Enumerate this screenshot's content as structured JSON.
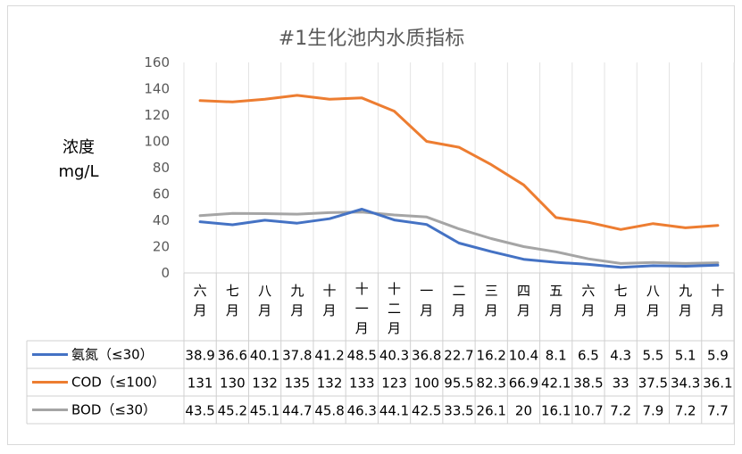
{
  "chart_data": {
    "type": "line",
    "title": "#1生化池内水质指标",
    "ylabel_line1": "浓度",
    "ylabel_line2": "mg/L",
    "ylim": [
      0,
      160
    ],
    "yticks": [
      0,
      20,
      40,
      60,
      80,
      100,
      120,
      140,
      160
    ],
    "categories": [
      "六月",
      "七月",
      "八月",
      "九月",
      "十月",
      "十一月",
      "十二月",
      "一月",
      "二月",
      "三月",
      "四月",
      "五月",
      "六月",
      "七月",
      "八月",
      "九月",
      "十月"
    ],
    "series": [
      {
        "name": "氨氮（≤30）",
        "color": "#4472c4",
        "values": [
          38.9,
          36.6,
          40.1,
          37.8,
          41.2,
          48.5,
          40.3,
          36.8,
          22.7,
          16.2,
          10.4,
          8.1,
          6.5,
          4.3,
          5.5,
          5.1,
          5.9
        ]
      },
      {
        "name": "COD（≤100）",
        "color": "#ed7d31",
        "values": [
          131,
          130,
          132,
          135,
          132,
          133,
          123,
          100,
          95.5,
          82.3,
          66.9,
          42.1,
          38.5,
          33,
          37.5,
          34.3,
          36.1
        ]
      },
      {
        "name": "BOD（≤30）",
        "color": "#a5a5a5",
        "values": [
          43.5,
          45.2,
          45.1,
          44.7,
          45.8,
          46.3,
          44.1,
          42.5,
          33.5,
          26.1,
          20,
          16.1,
          10.7,
          7.2,
          7.9,
          7.2,
          7.7
        ]
      }
    ],
    "grid": "vertical",
    "legend": "data-table"
  }
}
